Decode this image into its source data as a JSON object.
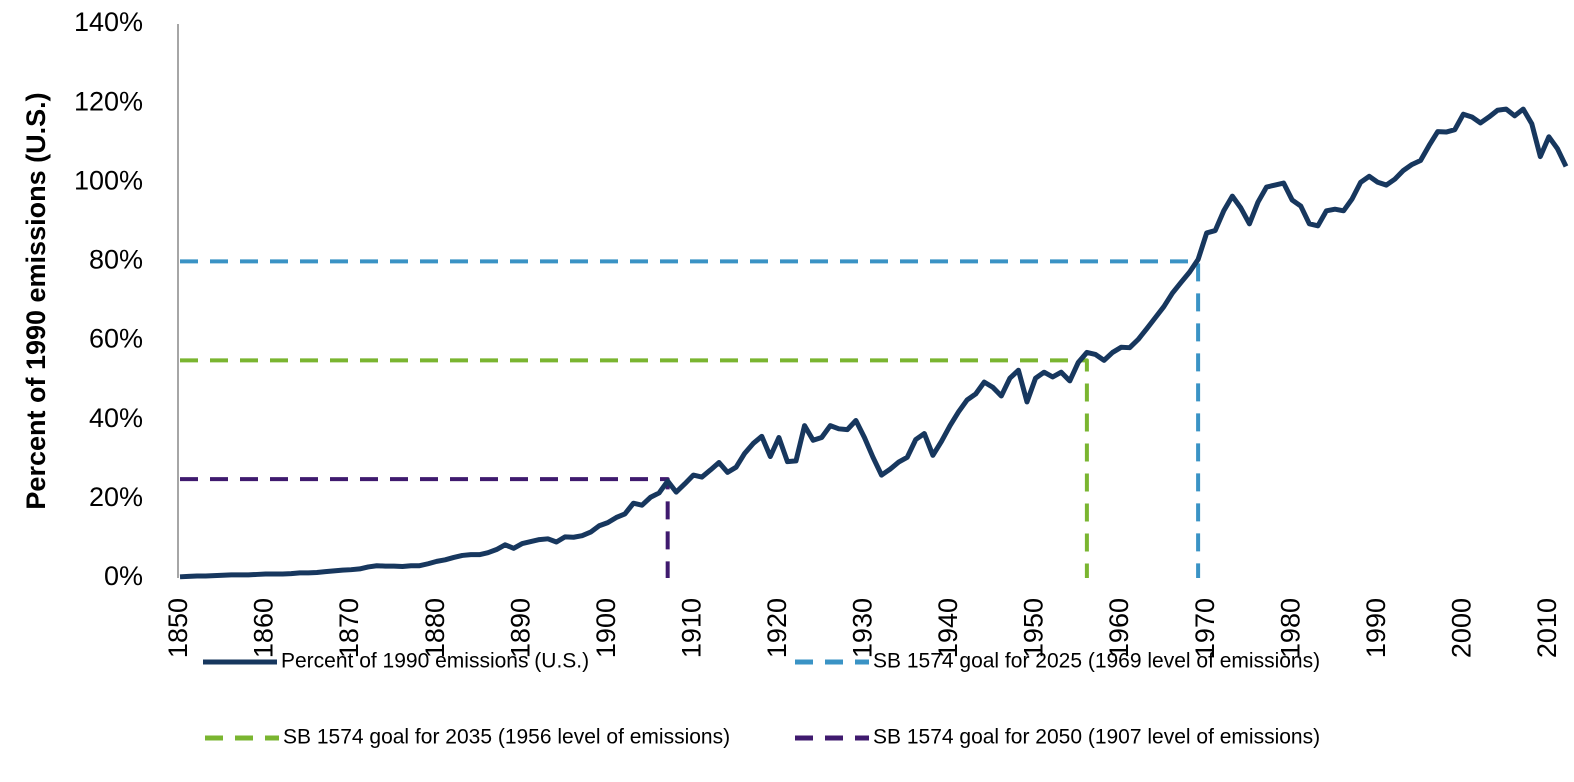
{
  "chart_data": {
    "type": "line",
    "ylabel": "Percent of 1990 emissions (U.S.)",
    "xlim": [
      1850,
      2012
    ],
    "ylim": [
      0,
      140
    ],
    "xticks": [
      1850,
      1860,
      1870,
      1880,
      1890,
      1900,
      1910,
      1920,
      1930,
      1940,
      1950,
      1960,
      1970,
      1980,
      1990,
      2000,
      2010
    ],
    "yticks": [
      {
        "value": 0,
        "label": "0%"
      },
      {
        "value": 20,
        "label": "20%"
      },
      {
        "value": 40,
        "label": "40%"
      },
      {
        "value": 60,
        "label": "60%"
      },
      {
        "value": 80,
        "label": "80%"
      },
      {
        "value": 100,
        "label": "100%"
      },
      {
        "value": 120,
        "label": "120%"
      },
      {
        "value": 140,
        "label": "140%"
      }
    ],
    "series": [
      {
        "name": "Percent of 1990 emissions (U.S.)",
        "color": "#17375e",
        "dashed": false,
        "x": [
          1850,
          1851,
          1852,
          1853,
          1854,
          1855,
          1856,
          1857,
          1858,
          1859,
          1860,
          1861,
          1862,
          1863,
          1864,
          1865,
          1866,
          1867,
          1868,
          1869,
          1870,
          1871,
          1872,
          1873,
          1874,
          1875,
          1876,
          1877,
          1878,
          1879,
          1880,
          1881,
          1882,
          1883,
          1884,
          1885,
          1886,
          1887,
          1888,
          1889,
          1890,
          1891,
          1892,
          1893,
          1894,
          1895,
          1896,
          1897,
          1898,
          1899,
          1900,
          1901,
          1902,
          1903,
          1904,
          1905,
          1906,
          1907,
          1908,
          1909,
          1910,
          1911,
          1912,
          1913,
          1914,
          1915,
          1916,
          1917,
          1918,
          1919,
          1920,
          1921,
          1922,
          1923,
          1924,
          1925,
          1926,
          1927,
          1928,
          1929,
          1930,
          1931,
          1932,
          1933,
          1934,
          1935,
          1936,
          1937,
          1938,
          1939,
          1940,
          1941,
          1942,
          1943,
          1944,
          1945,
          1946,
          1947,
          1948,
          1949,
          1950,
          1951,
          1952,
          1953,
          1954,
          1955,
          1956,
          1957,
          1958,
          1959,
          1960,
          1961,
          1962,
          1963,
          1964,
          1965,
          1966,
          1967,
          1968,
          1969,
          1970,
          1971,
          1972,
          1973,
          1974,
          1975,
          1976,
          1977,
          1978,
          1979,
          1980,
          1981,
          1982,
          1983,
          1984,
          1985,
          1986,
          1987,
          1988,
          1989,
          1990,
          1991,
          1992,
          1993,
          1994,
          1995,
          1996,
          1997,
          1998,
          1999,
          2000,
          2001,
          2002,
          2003,
          2004,
          2005,
          2006,
          2007,
          2008,
          2009,
          2010,
          2011,
          2012
        ],
        "values": [
          0.3,
          0.4,
          0.5,
          0.5,
          0.6,
          0.7,
          0.8,
          0.8,
          0.8,
          0.9,
          1.0,
          1.0,
          1.0,
          1.1,
          1.3,
          1.3,
          1.4,
          1.6,
          1.8,
          2.0,
          2.1,
          2.3,
          2.8,
          3.1,
          3.0,
          3.0,
          2.9,
          3.1,
          3.1,
          3.6,
          4.2,
          4.6,
          5.2,
          5.7,
          5.9,
          5.9,
          6.4,
          7.2,
          8.4,
          7.5,
          8.7,
          9.2,
          9.7,
          9.9,
          9.1,
          10.4,
          10.3,
          10.7,
          11.6,
          13.2,
          14.0,
          15.3,
          16.2,
          18.9,
          18.4,
          20.4,
          21.5,
          24.5,
          21.7,
          23.8,
          26.0,
          25.5,
          27.3,
          29.2,
          26.7,
          28.0,
          31.5,
          34.0,
          35.8,
          30.7,
          35.5,
          29.4,
          29.6,
          38.5,
          34.8,
          35.5,
          38.5,
          37.7,
          37.5,
          39.8,
          35.5,
          30.5,
          26.0,
          27.5,
          29.3,
          30.5,
          35.0,
          36.5,
          31.0,
          34.5,
          38.5,
          42.0,
          45.0,
          46.5,
          49.5,
          48.2,
          46.0,
          50.5,
          52.5,
          44.5,
          50.5,
          52.0,
          50.8,
          52.0,
          49.8,
          54.5,
          57.0,
          56.5,
          55.0,
          57.0,
          58.3,
          58.2,
          60.3,
          63.0,
          65.8,
          68.6,
          72.0,
          74.7,
          77.3,
          80.5,
          87.2,
          87.8,
          92.8,
          96.5,
          93.5,
          89.5,
          95.0,
          98.8,
          99.3,
          99.8,
          95.5,
          94.0,
          89.5,
          89.0,
          92.8,
          93.2,
          92.8,
          95.8,
          100.0,
          101.5,
          100.0,
          99.3,
          100.8,
          103.0,
          104.5,
          105.5,
          109.3,
          112.8,
          112.7,
          113.3,
          117.2,
          116.5,
          115.0,
          116.5,
          118.2,
          118.5,
          116.8,
          118.5,
          114.8,
          106.5,
          111.5,
          108.5,
          104.0
        ]
      },
      {
        "name": "SB 1574 goal for 2025 (1969 level of emissions)",
        "color": "#3a93c5",
        "dashed": true,
        "x": [
          1850,
          1969,
          1969
        ],
        "values": [
          80,
          80,
          0
        ]
      },
      {
        "name": "SB 1574 goal for 2035 (1956 level of emissions)",
        "color": "#7ab530",
        "dashed": true,
        "x": [
          1850,
          1956,
          1956
        ],
        "values": [
          55,
          55,
          0
        ]
      },
      {
        "name": "SB 1574 goal for 2050 (1907 level of emissions)",
        "color": "#3f1a6e",
        "dashed": true,
        "x": [
          1850,
          1907,
          1907
        ],
        "values": [
          25,
          25,
          0
        ]
      }
    ]
  }
}
